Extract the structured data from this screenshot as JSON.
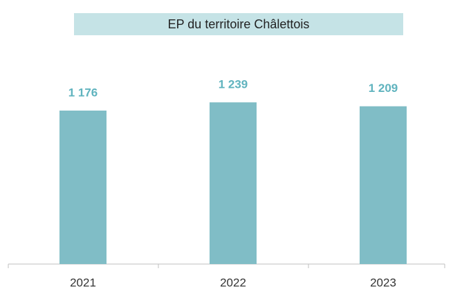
{
  "chart_data": {
    "type": "bar",
    "title": "EP du territoire Châlettois",
    "categories": [
      "2021",
      "2022",
      "2023"
    ],
    "values": [
      1176,
      1239,
      1209
    ],
    "value_labels": [
      "1 176",
      "1 239",
      "1 209"
    ],
    "color": "#80bdc6"
  }
}
